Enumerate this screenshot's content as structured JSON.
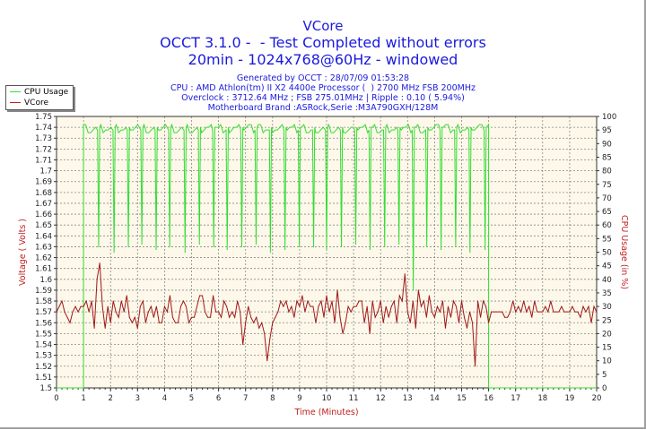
{
  "header": {
    "title": "VCore",
    "subtitle1": "OCCT 3.1.0 -  - Test Completed without errors",
    "subtitle2": "20min - 1024x768@60Hz - windowed",
    "info": [
      "Generated by OCCT : 28/07/09 01:53:28",
      "CPU : AMD Athlon(tm) II X2 4400e Processor (  ) 2700 MHz FSB 200MHz",
      "Overclock : 3712.64 MHz ; FSB 275.01MHz | Ripple : 0.10 ( 5.94%)",
      "Motherboard Brand :ASRock,Serie :M3A790GXH/128M"
    ]
  },
  "colors": {
    "title": "#1a1adc",
    "cpu": "#33dd33",
    "vcore": "#a01818",
    "plot_bg": "#fdf8e9",
    "axis_label": "#c02020"
  },
  "chart_data": {
    "type": "line",
    "xlabel": "Time (Minutes)",
    "ylabel": "Voltage ( Volts )",
    "y2label": "CPU Usage (in %)",
    "xlim": [
      0,
      20
    ],
    "ylim": [
      1.5,
      1.75
    ],
    "y2lim": [
      0,
      100
    ],
    "grid": true,
    "legend": "top-left",
    "x_ticks": [
      "0",
      "1",
      "2",
      "3",
      "4",
      "5",
      "6",
      "7",
      "8",
      "9",
      "10",
      "11",
      "12",
      "13",
      "14",
      "15",
      "16",
      "17",
      "18",
      "19",
      "20"
    ],
    "y_ticks": [
      "1.5",
      "1.51",
      "1.52",
      "1.53",
      "1.54",
      "1.55",
      "1.56",
      "1.57",
      "1.58",
      "1.59",
      "1.6",
      "1.61",
      "1.62",
      "1.63",
      "1.64",
      "1.65",
      "1.66",
      "1.67",
      "1.68",
      "1.69",
      "1.7",
      "1.71",
      "1.72",
      "1.73",
      "1.74",
      "1.75"
    ],
    "y2_ticks": [
      "0",
      "5",
      "10",
      "15",
      "20",
      "25",
      "30",
      "35",
      "40",
      "45",
      "50",
      "55",
      "60",
      "65",
      "70",
      "75",
      "80",
      "85",
      "90",
      "95",
      "100"
    ],
    "series": [
      {
        "name": "CPU Usage",
        "axis": "right",
        "dip_times": [
          1.56,
          2.13,
          2.66,
          3.16,
          3.69,
          4.19,
          4.76,
          5.29,
          5.82,
          6.32,
          6.86,
          7.39,
          7.92,
          8.46,
          8.99,
          9.52,
          10.0,
          10.55,
          11.08,
          11.61,
          12.15,
          12.68,
          13.21,
          13.71,
          14.24,
          14.78,
          15.31,
          15.87
        ],
        "dip_values": [
          52,
          50,
          52,
          53,
          51,
          52,
          50,
          53,
          52,
          51,
          52,
          53,
          50,
          51,
          52,
          52,
          51,
          52,
          53,
          51,
          52,
          53,
          36,
          52,
          51,
          52,
          50,
          51
        ],
        "plateau": 97,
        "start": 1.0,
        "end": 16.0
      },
      {
        "name": "VCore",
        "axis": "left",
        "x_step": 0.1,
        "values": [
          1.57,
          1.575,
          1.58,
          1.57,
          1.565,
          1.56,
          1.57,
          1.575,
          1.57,
          1.575,
          1.575,
          1.58,
          1.57,
          1.58,
          1.555,
          1.6,
          1.615,
          1.575,
          1.555,
          1.575,
          1.56,
          1.58,
          1.57,
          1.565,
          1.58,
          1.57,
          1.585,
          1.565,
          1.56,
          1.565,
          1.555,
          1.575,
          1.58,
          1.56,
          1.57,
          1.575,
          1.565,
          1.575,
          1.56,
          1.56,
          1.575,
          1.57,
          1.585,
          1.565,
          1.56,
          1.56,
          1.575,
          1.58,
          1.575,
          1.56,
          1.565,
          1.565,
          1.575,
          1.585,
          1.585,
          1.57,
          1.565,
          1.565,
          1.585,
          1.57,
          1.57,
          1.565,
          1.58,
          1.575,
          1.565,
          1.57,
          1.565,
          1.58,
          1.57,
          1.54,
          1.56,
          1.575,
          1.565,
          1.56,
          1.565,
          1.555,
          1.56,
          1.55,
          1.525,
          1.545,
          1.56,
          1.565,
          1.57,
          1.58,
          1.575,
          1.58,
          1.57,
          1.575,
          1.565,
          1.58,
          1.575,
          1.585,
          1.57,
          1.58,
          1.575,
          1.575,
          1.56,
          1.575,
          1.58,
          1.565,
          1.585,
          1.57,
          1.58,
          1.56,
          1.59,
          1.565,
          1.55,
          1.56,
          1.575,
          1.57,
          1.575,
          1.575,
          1.58,
          1.58,
          1.56,
          1.575,
          1.55,
          1.58,
          1.565,
          1.57,
          1.58,
          1.56,
          1.575,
          1.565,
          1.575,
          1.58,
          1.56,
          1.585,
          1.58,
          1.605,
          1.57,
          1.56,
          1.58,
          1.555,
          1.59,
          1.575,
          1.58,
          1.565,
          1.585,
          1.57,
          1.565,
          1.575,
          1.57,
          1.58,
          1.555,
          1.575,
          1.565,
          1.58,
          1.575,
          1.56,
          1.58,
          1.565,
          1.555,
          1.57,
          1.56,
          1.52,
          1.58,
          1.565,
          1.58,
          1.575,
          1.56,
          1.57,
          1.57,
          1.57,
          1.57,
          1.57,
          1.565,
          1.565,
          1.57,
          1.58,
          1.57,
          1.575,
          1.57,
          1.58,
          1.57,
          1.575,
          1.565,
          1.58,
          1.57,
          1.57,
          1.57,
          1.575,
          1.57,
          1.58,
          1.57,
          1.57,
          1.57,
          1.575,
          1.57,
          1.57,
          1.57,
          1.575,
          1.57,
          1.57,
          1.565,
          1.575,
          1.57,
          1.575,
          1.56,
          1.575,
          1.57
        ]
      }
    ]
  }
}
